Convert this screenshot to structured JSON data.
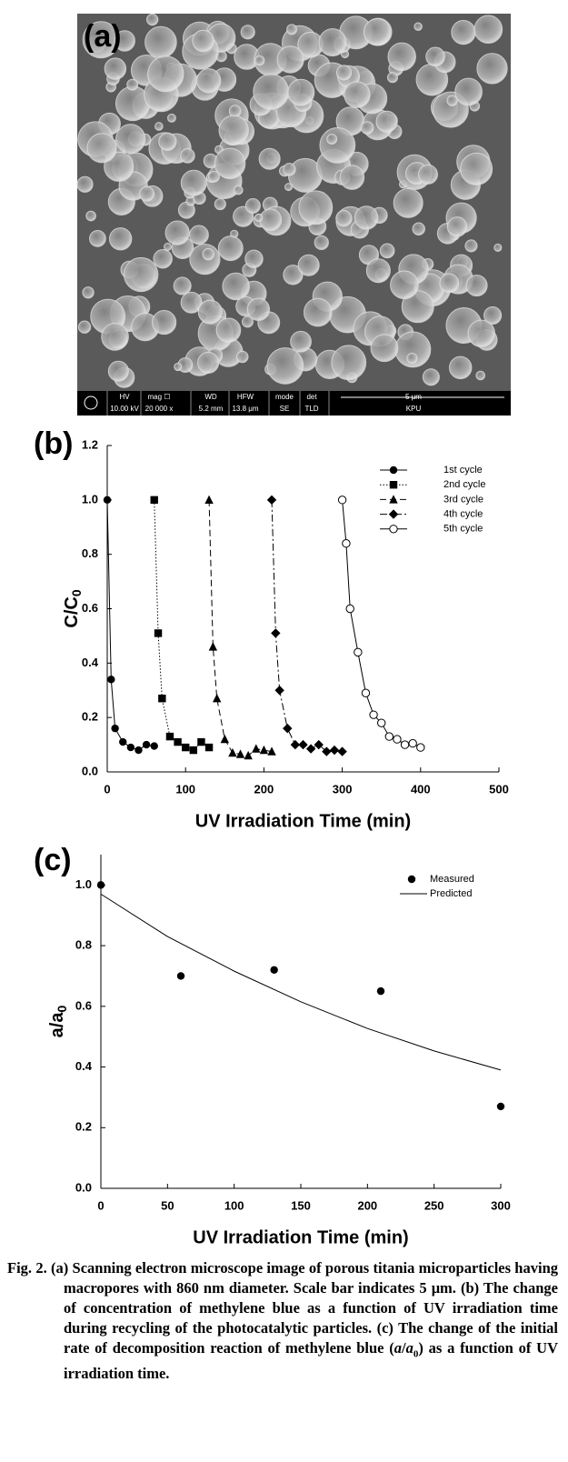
{
  "sem": {
    "label": "(a)",
    "info_labels": [
      "HV",
      "mag ☐",
      "WD",
      "HFW",
      "mode",
      "det",
      "5 μm"
    ],
    "info_values": [
      "10.00 kV",
      "20 000 x",
      "5.2 mm",
      "13.8 μm",
      "SE",
      "TLD",
      "KPU"
    ]
  },
  "chart_data": [
    {
      "type": "line",
      "label": "(b)",
      "xlabel": "UV Irradiation Time (min)",
      "ylabel": "C/C",
      "ylabel_subscript": "0",
      "xlim": [
        0,
        500
      ],
      "ylim": [
        0,
        1.2
      ],
      "xticks": [
        0,
        100,
        200,
        300,
        400,
        500
      ],
      "yticks": [
        {
          "value": 0,
          "label": "0.0"
        },
        0.2,
        0.4,
        0.6,
        0.8,
        {
          "value": 1,
          "label": "1.0"
        },
        1.2
      ],
      "legend": "upper right",
      "series": [
        {
          "name": "1st cycle",
          "color": "#000000",
          "marker": "circle",
          "dash": "solid",
          "x": [
            0,
            5,
            10,
            20,
            30,
            40,
            50,
            60
          ],
          "values": [
            1.0,
            0.34,
            0.16,
            0.11,
            0.09,
            0.08,
            0.1,
            0.095
          ]
        },
        {
          "name": "2nd cycle",
          "color": "#000000",
          "marker": "square",
          "dash": "dotted",
          "x": [
            60,
            65,
            70,
            80,
            90,
            100,
            110,
            120,
            130
          ],
          "values": [
            1.0,
            0.51,
            0.27,
            0.13,
            0.11,
            0.09,
            0.08,
            0.11,
            0.09
          ]
        },
        {
          "name": "3rd cycle",
          "color": "#000000",
          "marker": "triangle",
          "dash": "dashed",
          "x": [
            130,
            135,
            140,
            150,
            160,
            170,
            180,
            190,
            200,
            210
          ],
          "values": [
            1.0,
            0.46,
            0.27,
            0.12,
            0.07,
            0.065,
            0.06,
            0.085,
            0.08,
            0.075
          ]
        },
        {
          "name": "4th cycle",
          "color": "#000000",
          "marker": "diamond",
          "dash": "dashdot",
          "x": [
            210,
            215,
            220,
            230,
            240,
            250,
            260,
            270,
            280,
            290,
            300
          ],
          "values": [
            1.0,
            0.51,
            0.3,
            0.16,
            0.1,
            0.1,
            0.085,
            0.1,
            0.075,
            0.08,
            0.075
          ]
        },
        {
          "name": "5th cycle",
          "color": "#000000",
          "marker": "open-circle",
          "dash": "solid",
          "x": [
            300,
            305,
            310,
            320,
            330,
            340,
            350,
            360,
            370,
            380,
            390,
            400
          ],
          "values": [
            1.0,
            0.84,
            0.6,
            0.44,
            0.29,
            0.21,
            0.18,
            0.13,
            0.12,
            0.1,
            0.105,
            0.09
          ]
        }
      ]
    },
    {
      "type": "scatter",
      "label": "(c)",
      "xlabel": "UV Irradiation Time (min)",
      "ylabel": "a/a",
      "ylabel_subscript": "0",
      "xlim": [
        0,
        300
      ],
      "ylim": [
        0,
        1.1
      ],
      "xticks": [
        0,
        50,
        100,
        150,
        200,
        250,
        300
      ],
      "yticks": [
        {
          "value": 0,
          "label": "0.0"
        },
        0.2,
        0.4,
        0.6,
        0.8,
        {
          "value": 1,
          "label": "1.0"
        }
      ],
      "legend": "upper right",
      "series": [
        {
          "name": "Measured",
          "color": "#000000",
          "marker": "circle",
          "dash": null,
          "x": [
            0,
            60,
            130,
            210,
            300
          ],
          "values": [
            1.0,
            0.7,
            0.72,
            0.65,
            0.27
          ]
        },
        {
          "name": "Predicted",
          "color": "#000000",
          "marker": null,
          "dash": "solid",
          "x": [
            0,
            50,
            100,
            150,
            200,
            250,
            300
          ],
          "values": [
            0.97,
            0.83,
            0.716,
            0.615,
            0.527,
            0.453,
            0.39
          ]
        }
      ]
    }
  ],
  "caption": {
    "label": "Fig. 2.",
    "parts": [
      "(a) Scanning electron microscope image of porous titania microparticles having macropores with 860 nm diameter. Scale bar indicates 5 μm. (b) The change of concentration of methylene blue as a function of UV irradiation time during recycling of the photocatalytic particles. (c) The change of the initial rate of decomposition reaction of methylene blue (",
      "a",
      "/",
      "a",
      "0",
      ") as a function of UV irradiation time."
    ]
  }
}
